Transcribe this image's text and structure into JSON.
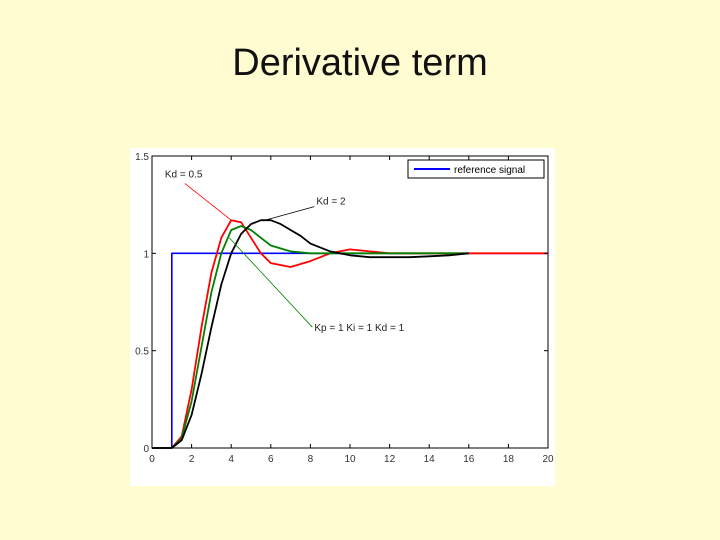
{
  "slide": {
    "title": "Derivative term"
  },
  "chart_data": {
    "type": "line",
    "title": "",
    "xlabel": "",
    "ylabel": "",
    "xlim": [
      0,
      20
    ],
    "ylim": [
      0,
      1.5
    ],
    "xticks": [
      "0",
      "2",
      "4",
      "6",
      "8",
      "10",
      "12",
      "14",
      "16",
      "18",
      "20"
    ],
    "yticks": [
      "0",
      "0.5",
      "1",
      "1.5"
    ],
    "grid": false,
    "legend": {
      "position": "top-right",
      "entries": [
        "reference signal"
      ]
    },
    "series": [
      {
        "name": "reference signal",
        "color": "#0000ff",
        "x": [
          0,
          1,
          1,
          20
        ],
        "y": [
          0,
          0,
          1,
          1
        ]
      },
      {
        "name": "",
        "color": "#ff0000",
        "x": [
          0,
          1,
          1.5,
          2,
          2.5,
          3,
          3.5,
          4,
          4.5,
          5,
          5.5,
          6,
          7,
          8,
          9,
          10,
          11,
          12,
          14,
          16,
          18,
          20
        ],
        "y": [
          0,
          0,
          0.06,
          0.3,
          0.62,
          0.9,
          1.08,
          1.17,
          1.16,
          1.08,
          1.0,
          0.95,
          0.93,
          0.96,
          1.0,
          1.02,
          1.01,
          1.0,
          1.0,
          1.0,
          1.0,
          1.0
        ]
      },
      {
        "name": "",
        "color": "#008000",
        "x": [
          0,
          1,
          1.5,
          2,
          2.5,
          3,
          3.5,
          4,
          4.5,
          5,
          5.5,
          6,
          7,
          8,
          9,
          10,
          11,
          12,
          14,
          16
        ],
        "y": [
          0,
          0,
          0.05,
          0.24,
          0.52,
          0.8,
          1.0,
          1.12,
          1.14,
          1.12,
          1.08,
          1.04,
          1.01,
          1.0,
          1.0,
          1.0,
          1.0,
          1.0,
          1.0,
          1.0
        ]
      },
      {
        "name": "",
        "color": "#000000",
        "x": [
          0,
          1,
          1.5,
          2,
          2.5,
          3,
          3.5,
          4,
          4.5,
          5,
          5.5,
          6,
          6.5,
          7,
          7.5,
          8,
          9,
          10,
          11,
          12,
          13,
          14,
          15,
          16
        ],
        "y": [
          0,
          0,
          0.04,
          0.17,
          0.38,
          0.62,
          0.84,
          1.0,
          1.1,
          1.15,
          1.17,
          1.17,
          1.15,
          1.12,
          1.09,
          1.05,
          1.01,
          0.99,
          0.98,
          0.98,
          0.98,
          0.985,
          0.99,
          1.0
        ]
      }
    ],
    "annotations": [
      {
        "text": "Kd = 0.5",
        "x": 0.65,
        "y": 1.39,
        "target_x": 4.0,
        "target_y": 1.17,
        "color": "#ff0000"
      },
      {
        "text": "Kd = 2",
        "x": 8.3,
        "y": 1.25,
        "target_x": 5.7,
        "target_y": 1.17,
        "color": "#000000"
      },
      {
        "text": "Kp = 1  Ki = 1  Kd = 1",
        "x": 8.2,
        "y": 0.6,
        "target_x": 3.9,
        "target_y": 1.08,
        "color": "#008000"
      }
    ]
  }
}
